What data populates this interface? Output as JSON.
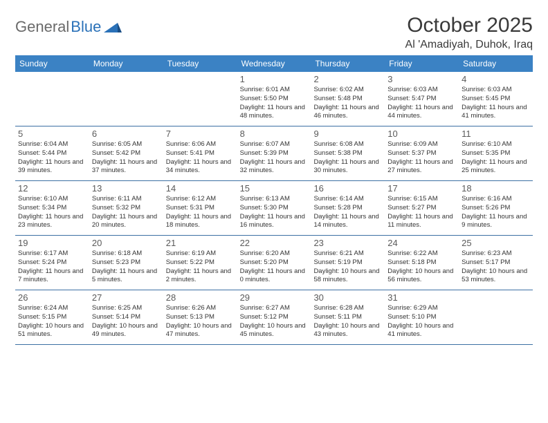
{
  "brand": {
    "word1": "General",
    "word2": "Blue"
  },
  "title": "October 2025",
  "location": "Al 'Amadiyah, Duhok, Iraq",
  "colors": {
    "header_bg": "#3b82c4",
    "header_text": "#ffffff",
    "rule": "#3b6fa3",
    "logo_grey": "#6a6a6a",
    "logo_blue": "#2a71b8",
    "text": "#333333",
    "daynum": "#5a5a5a",
    "page_bg": "#ffffff"
  },
  "weekdays": [
    "Sunday",
    "Monday",
    "Tuesday",
    "Wednesday",
    "Thursday",
    "Friday",
    "Saturday"
  ],
  "layout": {
    "first_weekday_index": 3,
    "days_in_month": 31
  },
  "days": {
    "1": {
      "sunrise": "6:01 AM",
      "sunset": "5:50 PM",
      "daylight": "11 hours and 48 minutes."
    },
    "2": {
      "sunrise": "6:02 AM",
      "sunset": "5:48 PM",
      "daylight": "11 hours and 46 minutes."
    },
    "3": {
      "sunrise": "6:03 AM",
      "sunset": "5:47 PM",
      "daylight": "11 hours and 44 minutes."
    },
    "4": {
      "sunrise": "6:03 AM",
      "sunset": "5:45 PM",
      "daylight": "11 hours and 41 minutes."
    },
    "5": {
      "sunrise": "6:04 AM",
      "sunset": "5:44 PM",
      "daylight": "11 hours and 39 minutes."
    },
    "6": {
      "sunrise": "6:05 AM",
      "sunset": "5:42 PM",
      "daylight": "11 hours and 37 minutes."
    },
    "7": {
      "sunrise": "6:06 AM",
      "sunset": "5:41 PM",
      "daylight": "11 hours and 34 minutes."
    },
    "8": {
      "sunrise": "6:07 AM",
      "sunset": "5:39 PM",
      "daylight": "11 hours and 32 minutes."
    },
    "9": {
      "sunrise": "6:08 AM",
      "sunset": "5:38 PM",
      "daylight": "11 hours and 30 minutes."
    },
    "10": {
      "sunrise": "6:09 AM",
      "sunset": "5:37 PM",
      "daylight": "11 hours and 27 minutes."
    },
    "11": {
      "sunrise": "6:10 AM",
      "sunset": "5:35 PM",
      "daylight": "11 hours and 25 minutes."
    },
    "12": {
      "sunrise": "6:10 AM",
      "sunset": "5:34 PM",
      "daylight": "11 hours and 23 minutes."
    },
    "13": {
      "sunrise": "6:11 AM",
      "sunset": "5:32 PM",
      "daylight": "11 hours and 20 minutes."
    },
    "14": {
      "sunrise": "6:12 AM",
      "sunset": "5:31 PM",
      "daylight": "11 hours and 18 minutes."
    },
    "15": {
      "sunrise": "6:13 AM",
      "sunset": "5:30 PM",
      "daylight": "11 hours and 16 minutes."
    },
    "16": {
      "sunrise": "6:14 AM",
      "sunset": "5:28 PM",
      "daylight": "11 hours and 14 minutes."
    },
    "17": {
      "sunrise": "6:15 AM",
      "sunset": "5:27 PM",
      "daylight": "11 hours and 11 minutes."
    },
    "18": {
      "sunrise": "6:16 AM",
      "sunset": "5:26 PM",
      "daylight": "11 hours and 9 minutes."
    },
    "19": {
      "sunrise": "6:17 AM",
      "sunset": "5:24 PM",
      "daylight": "11 hours and 7 minutes."
    },
    "20": {
      "sunrise": "6:18 AM",
      "sunset": "5:23 PM",
      "daylight": "11 hours and 5 minutes."
    },
    "21": {
      "sunrise": "6:19 AM",
      "sunset": "5:22 PM",
      "daylight": "11 hours and 2 minutes."
    },
    "22": {
      "sunrise": "6:20 AM",
      "sunset": "5:20 PM",
      "daylight": "11 hours and 0 minutes."
    },
    "23": {
      "sunrise": "6:21 AM",
      "sunset": "5:19 PM",
      "daylight": "10 hours and 58 minutes."
    },
    "24": {
      "sunrise": "6:22 AM",
      "sunset": "5:18 PM",
      "daylight": "10 hours and 56 minutes."
    },
    "25": {
      "sunrise": "6:23 AM",
      "sunset": "5:17 PM",
      "daylight": "10 hours and 53 minutes."
    },
    "26": {
      "sunrise": "6:24 AM",
      "sunset": "5:15 PM",
      "daylight": "10 hours and 51 minutes."
    },
    "27": {
      "sunrise": "6:25 AM",
      "sunset": "5:14 PM",
      "daylight": "10 hours and 49 minutes."
    },
    "28": {
      "sunrise": "6:26 AM",
      "sunset": "5:13 PM",
      "daylight": "10 hours and 47 minutes."
    },
    "29": {
      "sunrise": "6:27 AM",
      "sunset": "5:12 PM",
      "daylight": "10 hours and 45 minutes."
    },
    "30": {
      "sunrise": "6:28 AM",
      "sunset": "5:11 PM",
      "daylight": "10 hours and 43 minutes."
    },
    "31": {
      "sunrise": "6:29 AM",
      "sunset": "5:10 PM",
      "daylight": "10 hours and 41 minutes."
    }
  },
  "labels": {
    "sunrise": "Sunrise:",
    "sunset": "Sunset:",
    "daylight": "Daylight:"
  }
}
